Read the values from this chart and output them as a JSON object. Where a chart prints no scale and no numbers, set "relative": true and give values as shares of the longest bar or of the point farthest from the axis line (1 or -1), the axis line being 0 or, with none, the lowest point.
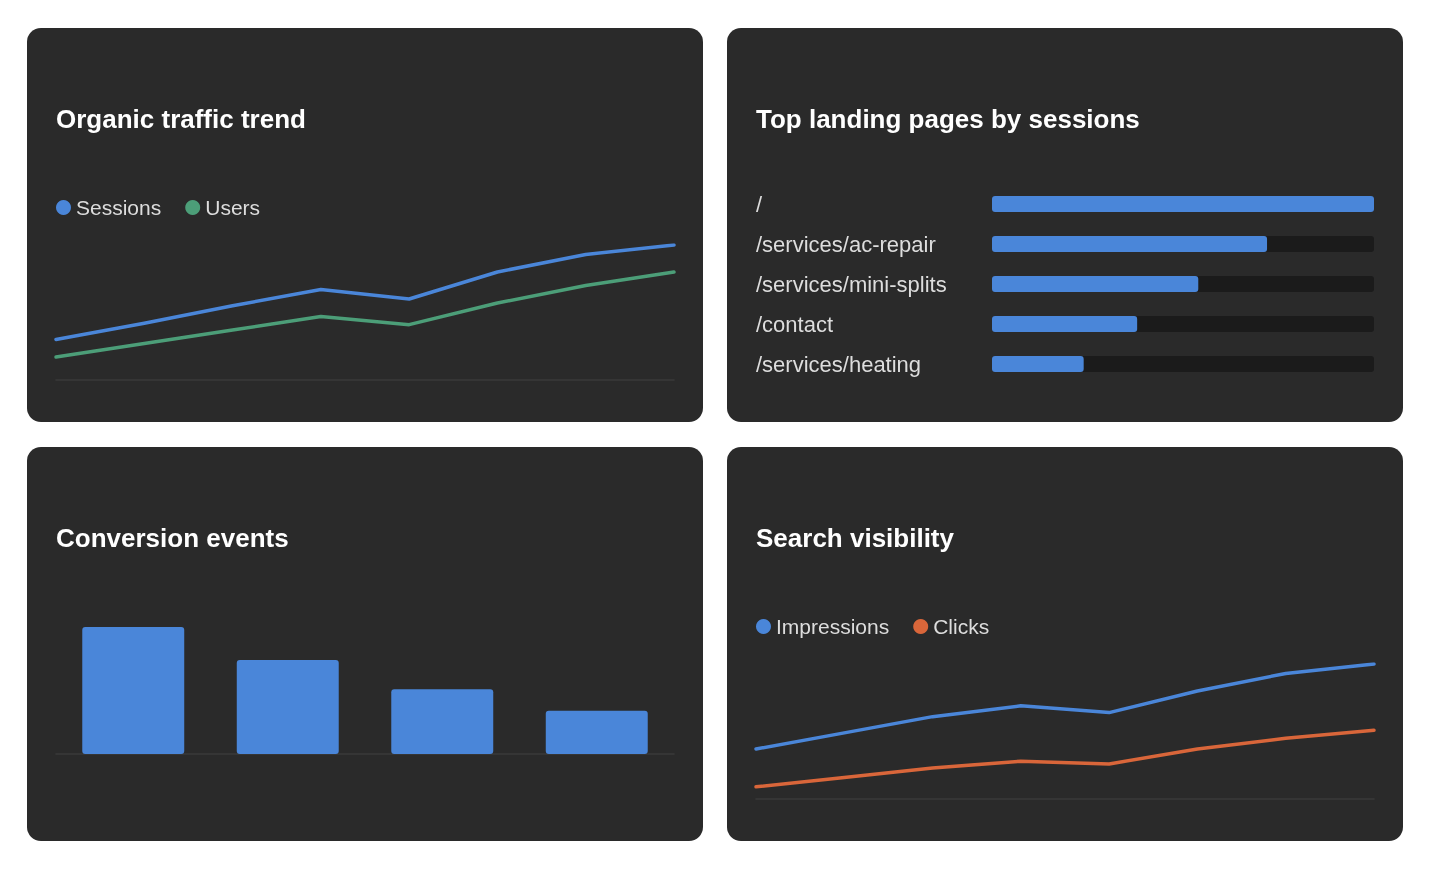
{
  "chart_data": [
    {
      "type": "line",
      "title": "Organic traffic trend",
      "categories": [
        null,
        null,
        null,
        null,
        null,
        null,
        null,
        null
      ],
      "relative": true,
      "legend": "top left",
      "marker": "none",
      "line_style": "solid",
      "series": [
        {
          "name": "Sessions",
          "color": "#4a86d9",
          "values": [
            0.3,
            0.42,
            0.55,
            0.67,
            0.6,
            0.8,
            0.93,
            1
          ]
        },
        {
          "name": "Users",
          "color": "#4c9e78",
          "values": [
            0.17,
            0.27,
            0.37,
            0.47,
            0.41,
            0.57,
            0.7,
            0.8
          ]
        }
      ]
    },
    {
      "type": "bar",
      "title": "Top landing pages by sessions",
      "orientation": "horizontal",
      "relative": true,
      "categories": [
        "/",
        "/services/ac-repair",
        "/services/mini-splits",
        "/contact",
        "/services/heating"
      ],
      "color": "#4a86d9",
      "values": [
        1,
        0.72,
        0.54,
        0.38,
        0.24
      ]
    },
    {
      "type": "bar",
      "title": "Conversion events",
      "relative": true,
      "categories": [
        null,
        null,
        null,
        null
      ],
      "color": "#4a86d9",
      "values": [
        1,
        0.74,
        0.51,
        0.34
      ]
    },
    {
      "type": "line",
      "title": "Search visibility",
      "categories": [
        null,
        null,
        null,
        null,
        null,
        null,
        null,
        null
      ],
      "relative": true,
      "legend": "top left",
      "marker": "none",
      "line_style": "solid",
      "series": [
        {
          "name": "Impressions",
          "color": "#4a86d9",
          "values": [
            0.37,
            0.49,
            0.61,
            0.69,
            0.64,
            0.8,
            0.93,
            1
          ]
        },
        {
          "name": "Clicks",
          "color": "#d9663a",
          "values": [
            0.09,
            0.16,
            0.23,
            0.28,
            0.26,
            0.37,
            0.45,
            0.51
          ]
        }
      ]
    }
  ]
}
